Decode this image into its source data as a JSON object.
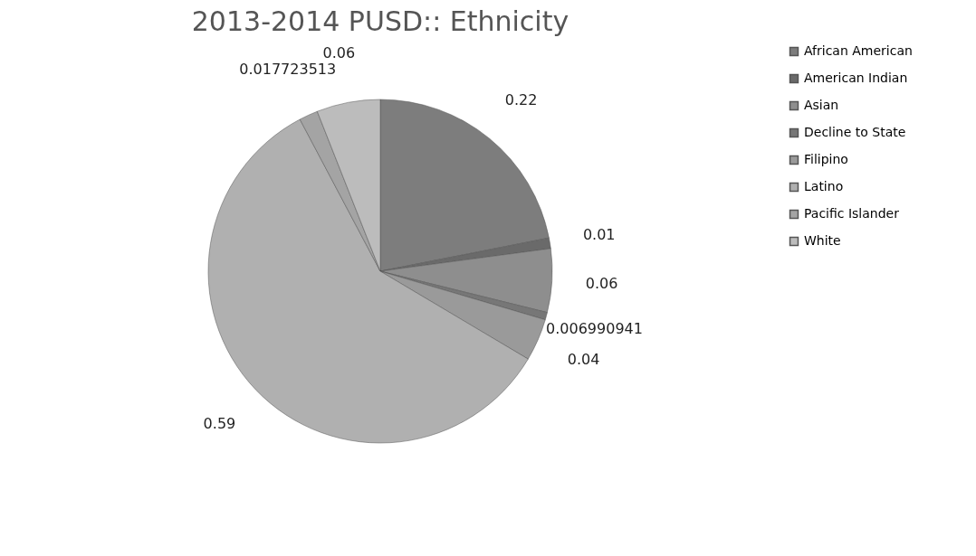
{
  "chart_data": {
    "type": "pie",
    "title": "2013-2014 PUSD::  Ethnicity",
    "categories": [
      "African American",
      "American Indian",
      "Asian",
      "Decline to State",
      "Filipino",
      "Latino",
      "Pacific Islander",
      "White"
    ],
    "values": [
      0.22,
      0.01,
      0.06,
      0.006990941,
      0.04,
      0.59,
      0.017723513,
      0.06
    ],
    "colors": [
      "#7d7d7d",
      "#6a6a6a",
      "#8e8e8e",
      "#777777",
      "#9a9a9a",
      "#b0b0b0",
      "#a4a4a4",
      "#bcbcbc"
    ],
    "data_labels": true,
    "legend": "right"
  }
}
